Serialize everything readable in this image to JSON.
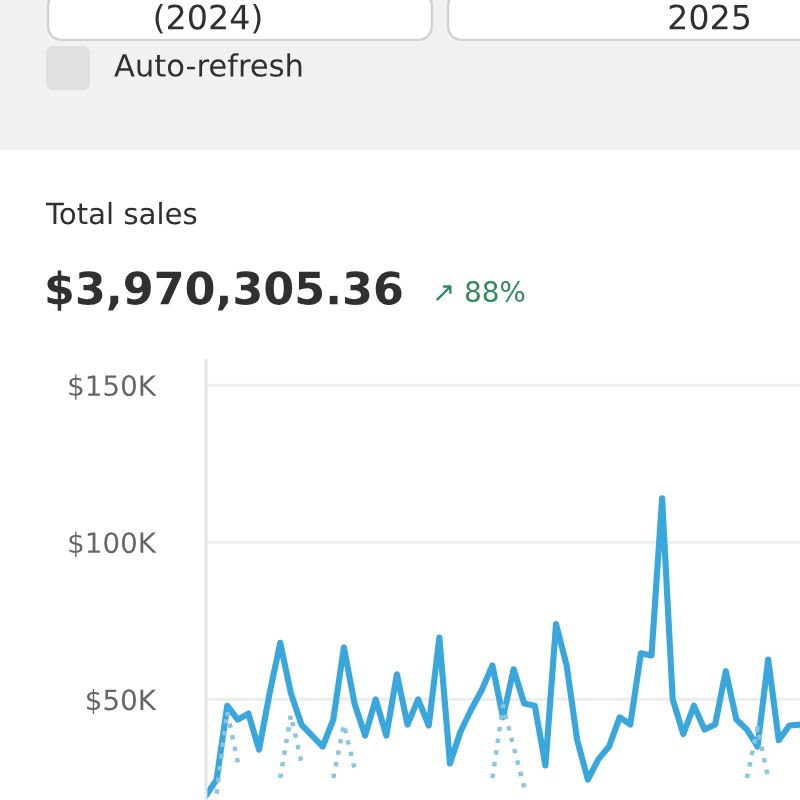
{
  "chart_data": {
    "type": "line",
    "title": "Total sales",
    "subtitle": "$3,970,305.36",
    "annotations": [
      "(2024)",
      "2025",
      "Auto-refresh",
      "↗ 88%"
    ],
    "categories": [
      null,
      null,
      null,
      null,
      null,
      null,
      null,
      null,
      null,
      null,
      null,
      null,
      null,
      null,
      null,
      null,
      null,
      null,
      null,
      null,
      null,
      null,
      null,
      null,
      null,
      null,
      null,
      null,
      null,
      null,
      null,
      null,
      null,
      null,
      null,
      null,
      null,
      null,
      null,
      null,
      null,
      null,
      null,
      null,
      null,
      null,
      null,
      null,
      null,
      null,
      null,
      null,
      null,
      null,
      null,
      null,
      null
    ],
    "series": [
      {
        "color": "#3aa7dc",
        "line_style": "solid",
        "values": [
          19400,
          24500,
          48000,
          43600,
          45500,
          34000,
          52000,
          68000,
          52000,
          42000,
          38500,
          35000,
          43600,
          66600,
          48700,
          38500,
          50000,
          38500,
          58000,
          42000,
          50000,
          41700,
          69700,
          29600,
          39800,
          46800,
          53000,
          60800,
          44300,
          59600,
          48700,
          48000,
          29000,
          74000,
          60800,
          37000,
          24500,
          31000,
          35000,
          44300,
          42000,
          64700,
          64000,
          114000,
          50000,
          39000,
          48000,
          40400,
          42000,
          59000,
          43600,
          40400,
          35000,
          62700,
          37000,
          41700,
          42000
        ]
      },
      {
        "color": "#8ac6e0",
        "line_style": "dotted",
        "values": [
          null,
          20000,
          46000,
          30000,
          null,
          null,
          null,
          25000,
          45000,
          30000,
          null,
          null,
          25000,
          42000,
          28000,
          null,
          null,
          null,
          null,
          null,
          null,
          null,
          null,
          null,
          null,
          null,
          null,
          25000,
          48000,
          35000,
          22000,
          null,
          null,
          null,
          null,
          null,
          null,
          null,
          null,
          null,
          null,
          null,
          null,
          null,
          null,
          null,
          null,
          null,
          null,
          null,
          null,
          25000,
          41000,
          25000,
          null,
          null,
          null
        ]
      }
    ],
    "ylim": [
      18000,
      158000
    ],
    "yticks": [
      {
        "value": 50000,
        "label": "$50K"
      },
      {
        "value": 100000,
        "label": "$100K"
      },
      {
        "value": 150000,
        "label": "$150K"
      }
    ],
    "grid": "y",
    "tick_labels": "y"
  }
}
